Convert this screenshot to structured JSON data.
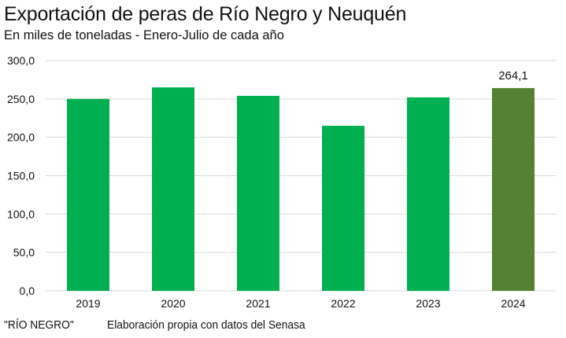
{
  "header": {
    "title": "Exportación de peras de Río Negro y Neuquén",
    "subtitle": "En miles de toneladas - Enero-Julio de cada año"
  },
  "footer": {
    "source_outlet": "\"RÍO NEGRO\"",
    "source_note": "Elaboración propia con datos del Senasa"
  },
  "colors": {
    "bar": "#00b050",
    "highlight_bar": "#548235",
    "grid": "#d9d9d9"
  },
  "chart_data": {
    "type": "bar",
    "title": "Exportación de peras de Río Negro y Neuquén",
    "subtitle": "En miles de toneladas - Enero-Julio de cada año",
    "xlabel": "",
    "ylabel": "",
    "categories": [
      "2019",
      "2020",
      "2021",
      "2022",
      "2023",
      "2024"
    ],
    "values": [
      250.0,
      265.0,
      254.0,
      215.0,
      252.0,
      264.1
    ],
    "highlight_index": 5,
    "data_labels": [
      {
        "index": 5,
        "text": "264,1"
      }
    ],
    "ylim": [
      0,
      300
    ],
    "yticks": [
      0,
      50,
      100,
      150,
      200,
      250,
      300
    ],
    "ytick_labels": [
      "0,0",
      "50,0",
      "100,0",
      "150,0",
      "200,0",
      "250,0",
      "300,0"
    ],
    "grid": true,
    "legend": "none"
  }
}
